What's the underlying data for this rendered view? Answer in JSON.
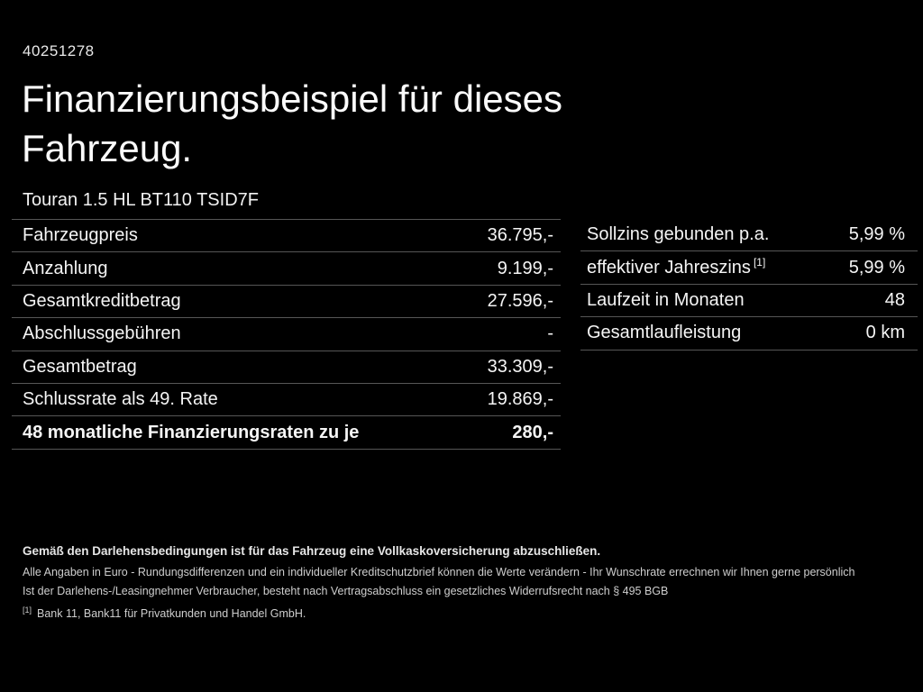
{
  "page": {
    "id_number": "40251278",
    "title_line1": "Finanzierungsbeispiel für dieses",
    "title_line2": "Fahrzeug.",
    "vehicle_name": "Touran 1.5 HL BT110 TSID7F"
  },
  "left_table": {
    "rows": [
      {
        "label": "Fahrzeugpreis",
        "value": "36.795,-"
      },
      {
        "label": "Anzahlung",
        "value": "9.199,-"
      },
      {
        "label": "Gesamtkreditbetrag",
        "value": "27.596,-"
      },
      {
        "label": "Abschlussgebühren",
        "value": "-"
      },
      {
        "label": "Gesamtbetrag",
        "value": "33.309,-"
      },
      {
        "label": "Schlussrate als 49. Rate",
        "value": "19.869,-"
      },
      {
        "label": "48 monatliche Finanzierungsraten zu je",
        "value": "280,-"
      }
    ]
  },
  "right_table": {
    "rows": [
      {
        "label": "Sollzins gebunden p.a.",
        "value": "5,99 %"
      },
      {
        "label": "effektiver Jahreszins",
        "label_superscript": "[1]",
        "value": "5,99 %"
      },
      {
        "label": "Laufzeit in Monaten",
        "value": "48"
      },
      {
        "label": "Gesamtlaufleistung",
        "value": "0 km"
      }
    ]
  },
  "footer": {
    "bold_note": "Gemäß den Darlehensbedingungen ist für das Fahrzeug eine Vollkaskoversicherung abzuschließen.",
    "line1": "Alle Angaben in Euro - Rundungsdifferenzen und ein individueller Kreditschutzbrief können die Werte verändern - Ihr Wunschrate errechnen wir Ihnen gerne persönlich",
    "line2": "Ist der Darlehens-/Leasingnehmer Verbraucher, besteht nach Vertragsabschluss ein gesetzliches Widerrufsrecht nach § 495 BGB",
    "footnote_marker": "[1]",
    "footnote_text": "Bank 11, Bank11 für Privatkunden und Handel GmbH."
  },
  "colors": {
    "background": "#000000",
    "text": "#f5f5f5",
    "separator": "#565656"
  }
}
